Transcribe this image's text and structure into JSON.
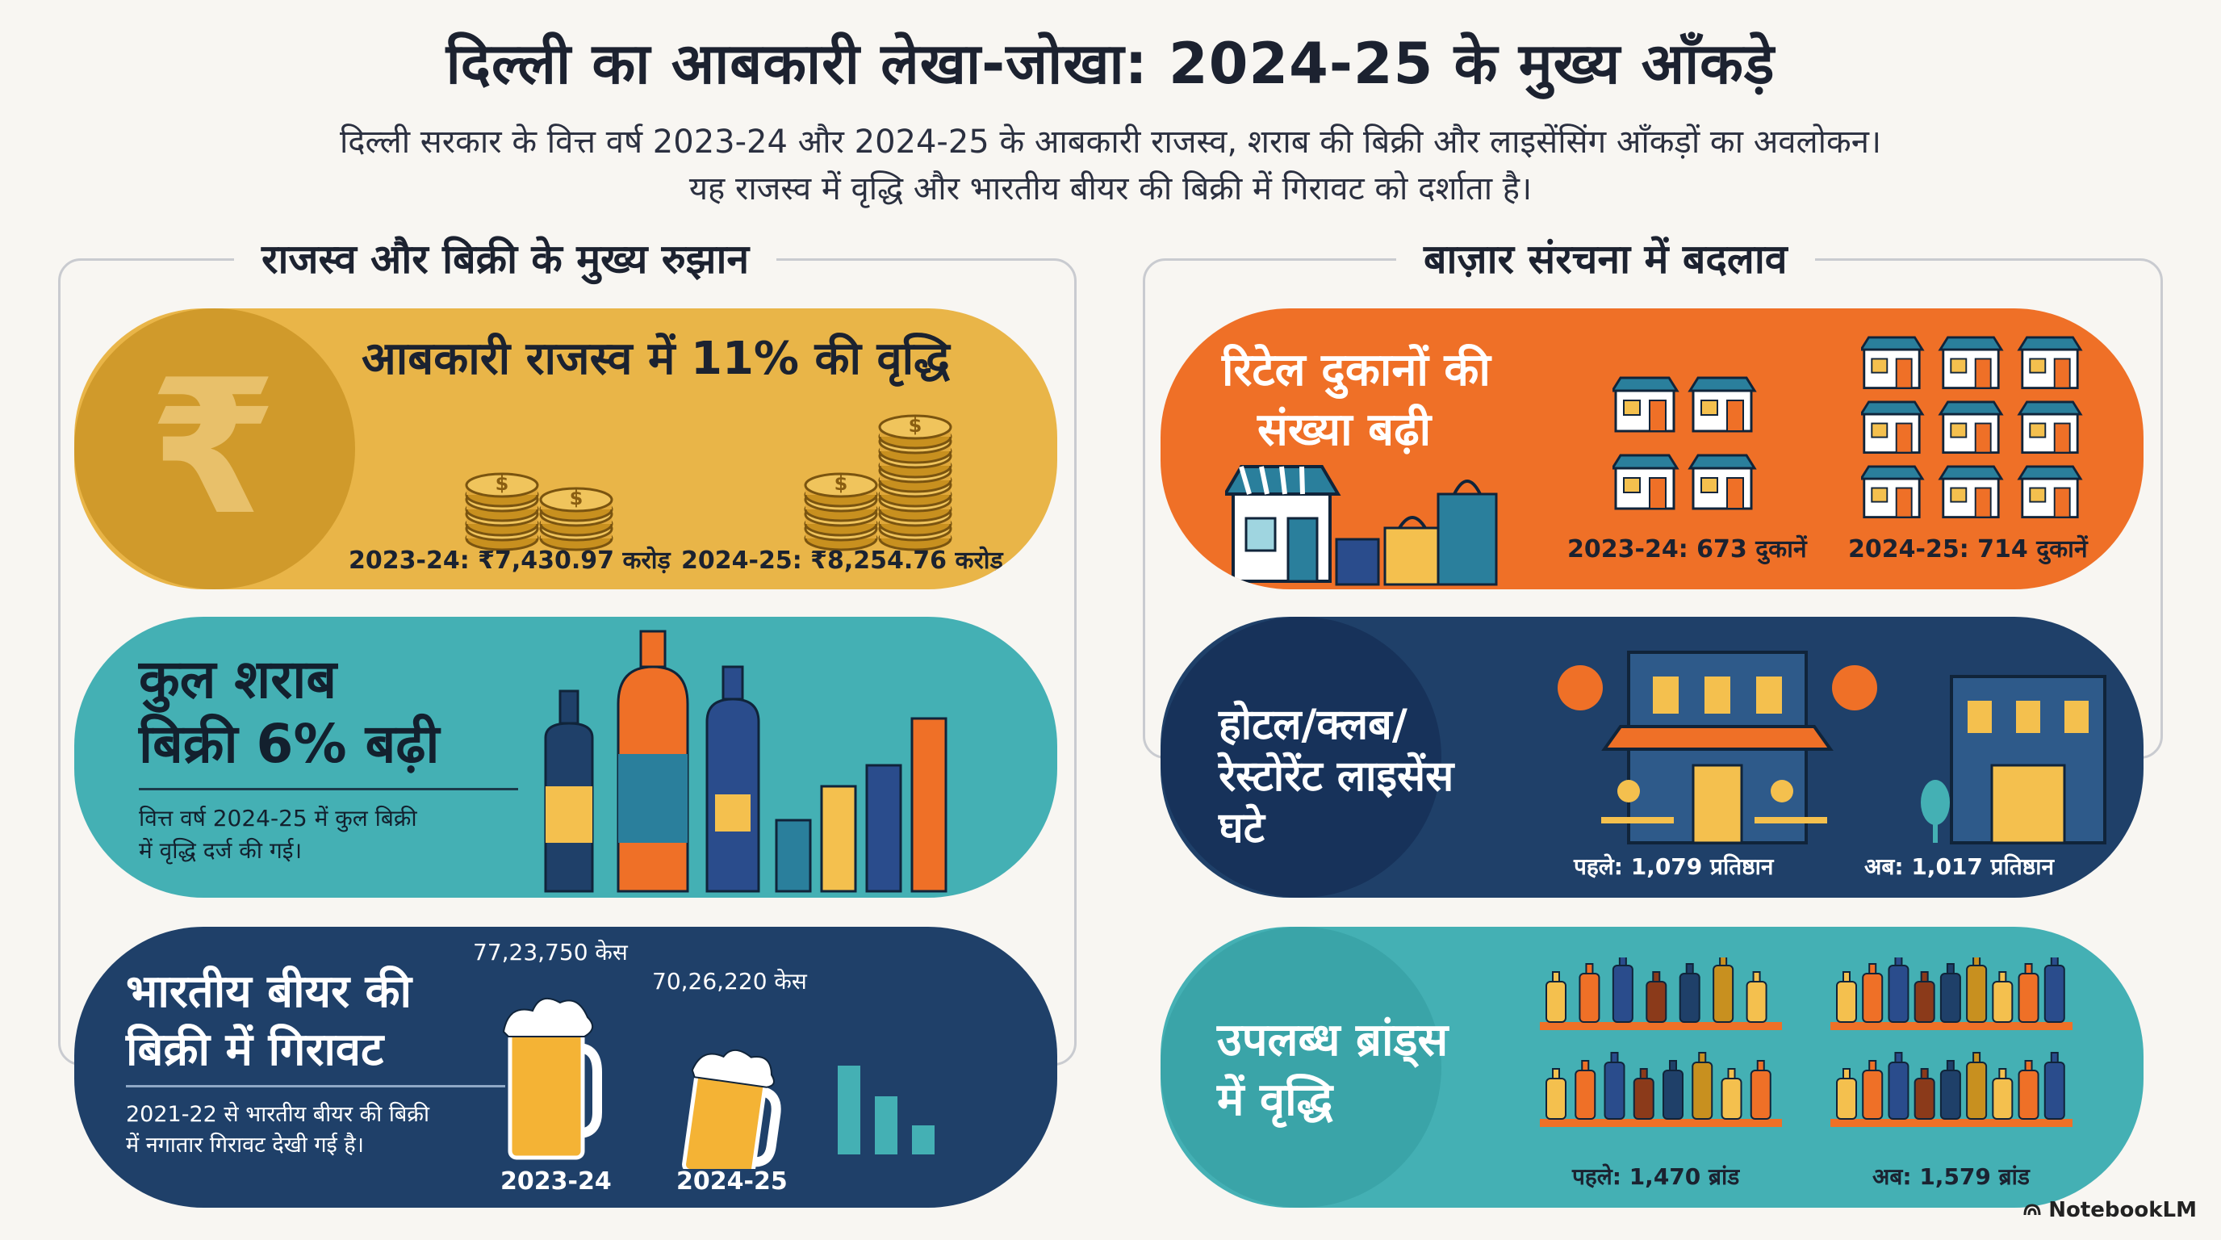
{
  "header": {
    "title": "दिल्ली का आबकारी लेखा-जोखा: 2024-25 के मुख्य आँकड़े",
    "subtitle_line1": "दिल्ली सरकार के वित्त वर्ष 2023-24 और 2024-25 के आबकारी राजस्व, शराब की बिक्री और लाइसेंसिंग आँकड़ों का अवलोकन।",
    "subtitle_line2": "यह राजस्व में वृद्धि और भारतीय बीयर की बिक्री में गिरावट को दर्शाता है।"
  },
  "sections": {
    "left_heading": "राजस्व और बिक्री के मुख्य रुझान",
    "right_heading": "बाज़ार संरचना में बदलाव"
  },
  "revenue": {
    "title": "आबकारी राजस्व में 11% की वृद्धि",
    "label_2023": "2023-24: ₹7,430.97 करोड़",
    "label_2024": "2024-25: ₹8,254.76 करोड़",
    "rupee_symbol": "₹",
    "value_2023_crore": 7430.97,
    "value_2024_crore": 8254.76
  },
  "liquor": {
    "title_line1": "कुल शराब",
    "title_line2": "बिक्री 6% बढ़ी",
    "desc_line1": "वित्त वर्ष 2024-25 में कुल बिक्री",
    "desc_line2": "में वृद्धि दर्ज की गई।"
  },
  "beer": {
    "title_line1": "भारतीय बीयर की",
    "title_line2": "बिक्री में गिरावट",
    "desc_line1": "2021-22 से भारतीय बीयर की बिक्री",
    "desc_line2": "में नगातार गिरावट देखी गई है।",
    "cases_2023": "77,23,750 केस",
    "cases_2024": "70,26,220 केस",
    "year_2023": "2023-24",
    "year_2024": "2024-25"
  },
  "retail": {
    "title_line1": "रिटेल दुकानों की",
    "title_line2": "संख्या बढ़ी",
    "label_2023": "2023-24: 673 दुकानें",
    "label_2024": "2024-25: 714 दुकानें"
  },
  "hotel": {
    "title_line1": "होटल/क्लब/",
    "title_line2": "रेस्टोरेंट लाइसेंस",
    "title_line3": "घटे",
    "label_before": "पहले: 1,079 प्रतिष्ठान",
    "label_now": "अब: 1,017 प्रतिष्ठान"
  },
  "brands": {
    "title_line1": "उपलब्ध ब्रांड्स",
    "title_line2": "में वृद्धि",
    "label_before": "पहले: 1,470 ब्रांड",
    "label_now": "अब: 1,579 ब्रांड"
  },
  "footer": {
    "brand": "NotebookLM"
  },
  "colors": {
    "gold": "#e9b548",
    "teal": "#44b0b4",
    "navy": "#1f4069",
    "orange": "#ef7027"
  }
}
